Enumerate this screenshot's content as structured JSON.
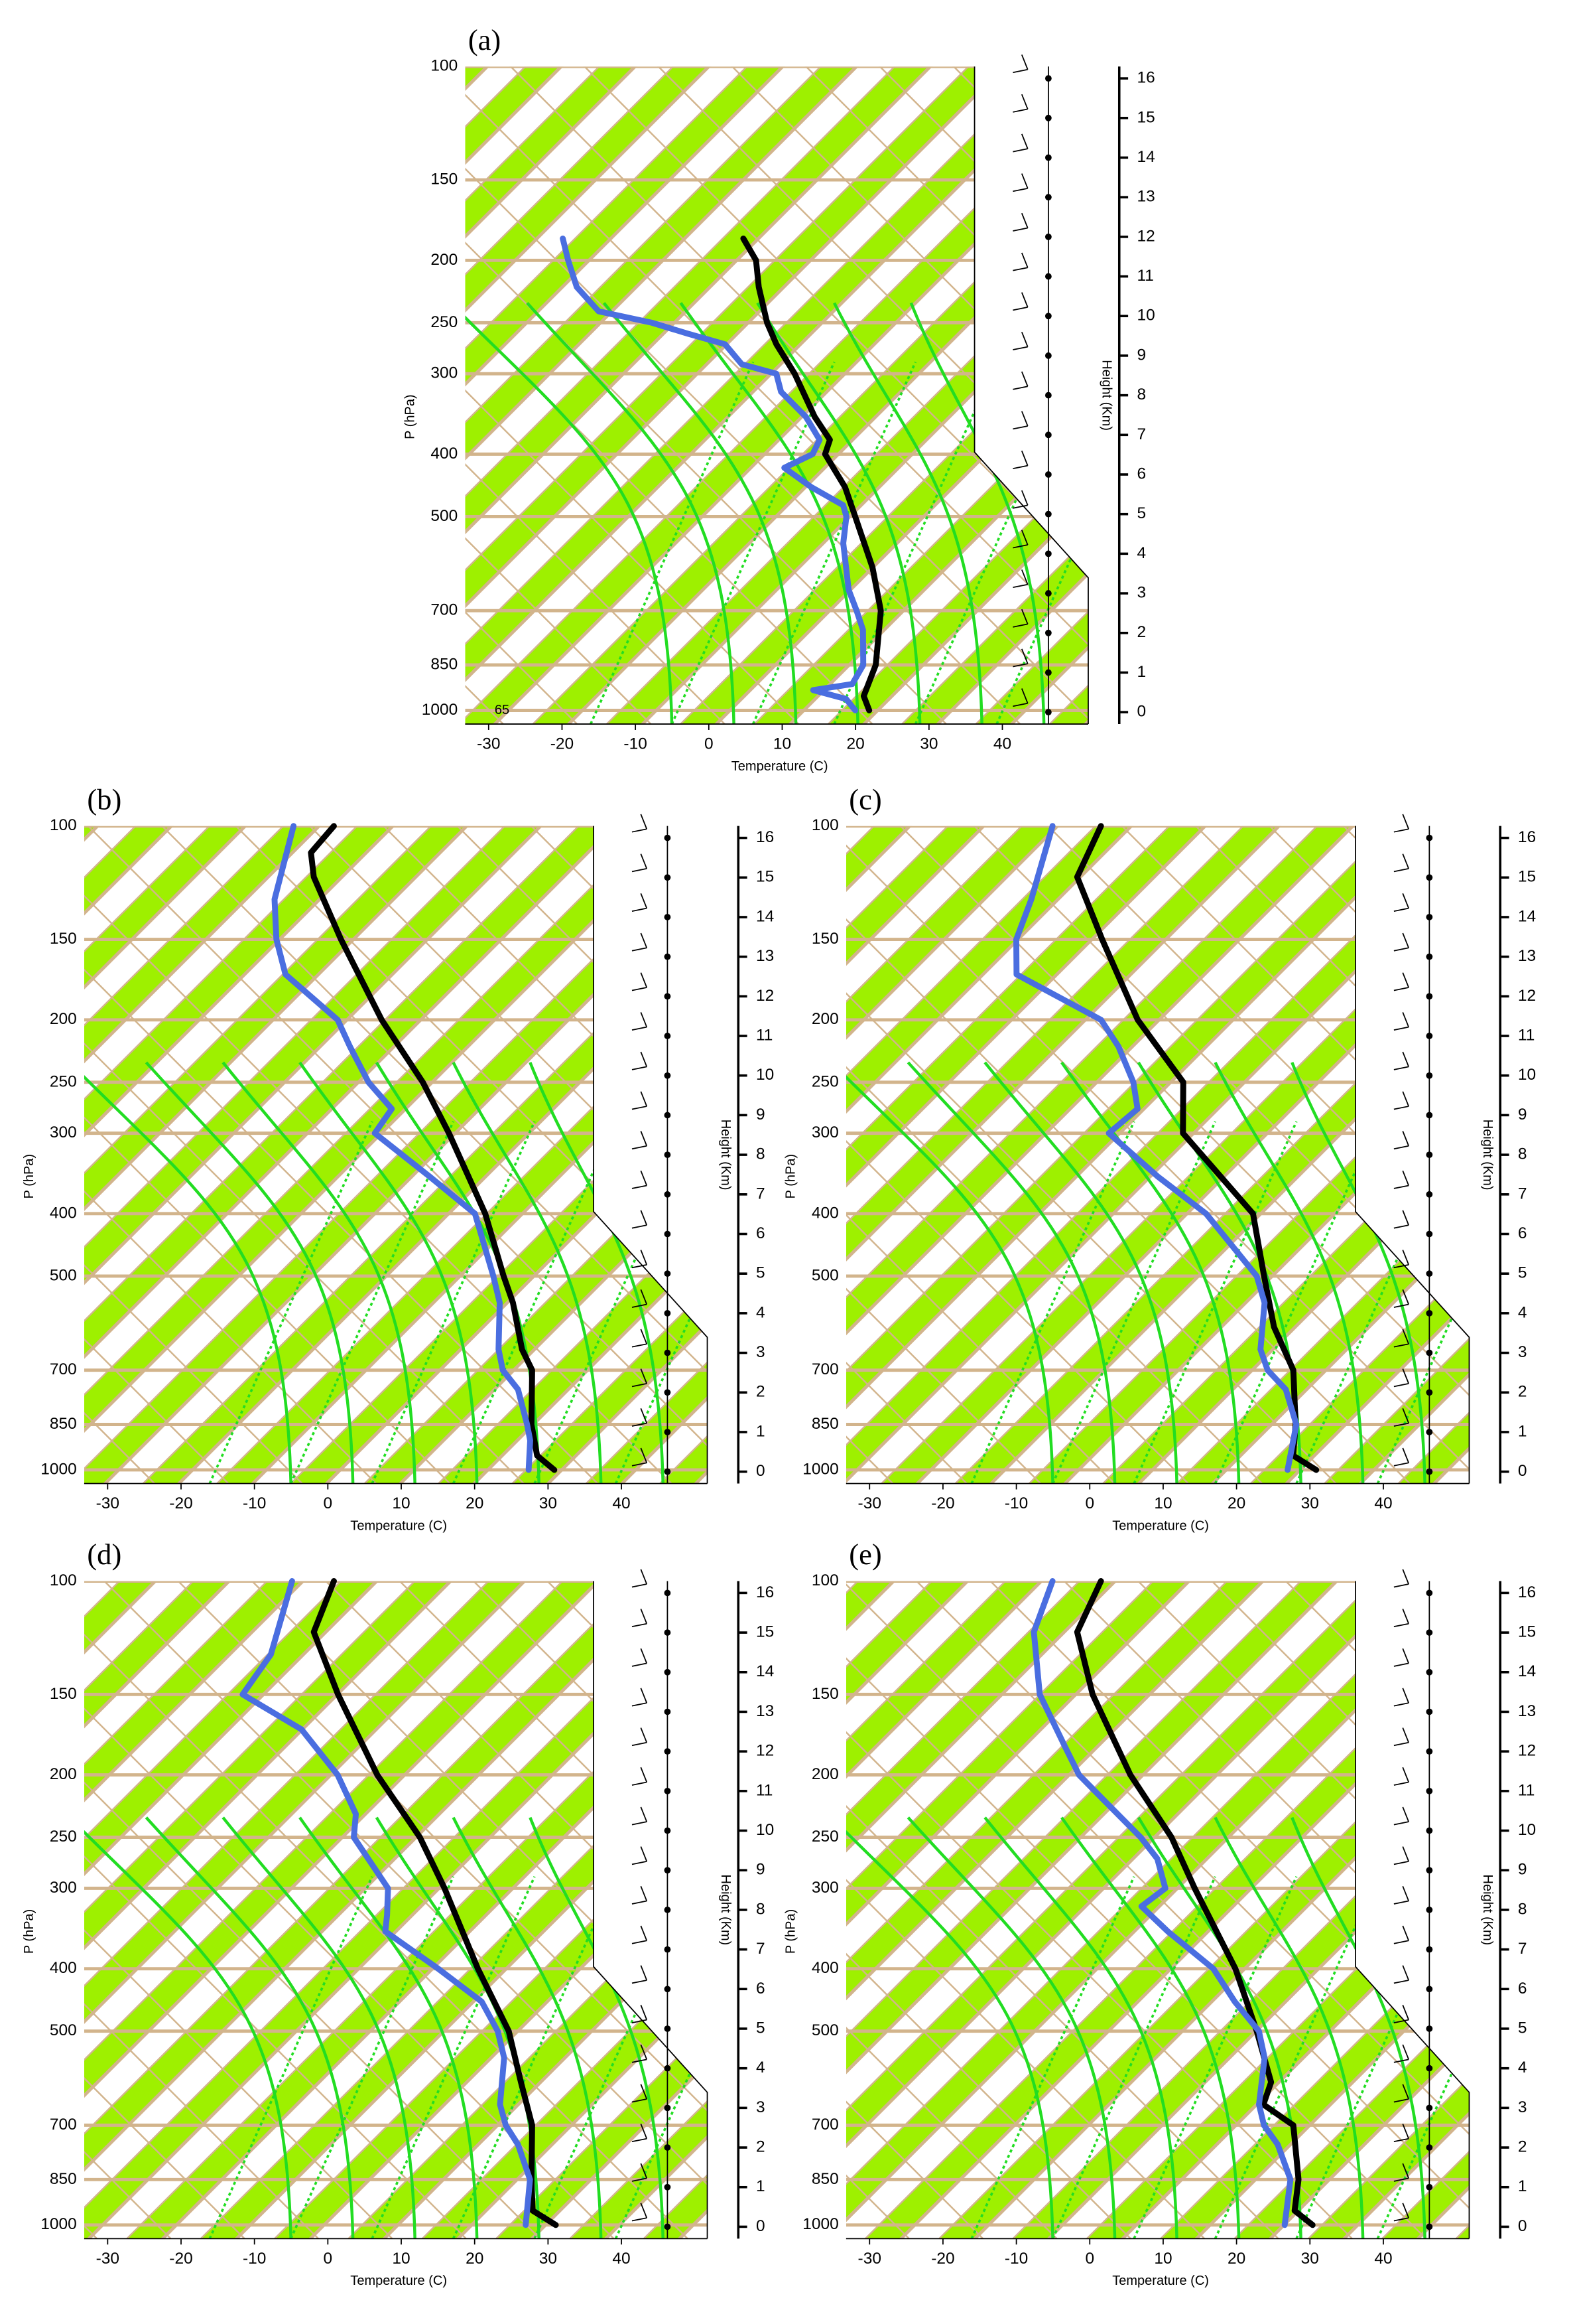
{
  "chart_data": [
    {
      "type": "skewt",
      "title": "(a)",
      "annotation": "65",
      "xlabel": "Temperature (C)",
      "ylabel": "P (hPa)",
      "y2label": "Height (Km)",
      "xlim": [
        -33.2,
        51.7
      ],
      "xticks": [
        -30,
        -20,
        -10,
        0,
        10,
        20,
        30,
        40
      ],
      "ylim": [
        1050,
        100
      ],
      "ylog": true,
      "yticks": [
        100,
        150,
        200,
        250,
        300,
        400,
        500,
        700,
        850,
        1000
      ],
      "y2lim": [
        -0.3,
        16.3
      ],
      "y2ticks": [
        0,
        1,
        2,
        3,
        4,
        5,
        6,
        7,
        8,
        9,
        10,
        11,
        12,
        13,
        14,
        15,
        16
      ],
      "grid": true,
      "series": [
        {
          "color": "#000000",
          "values": [
            1000,
            950,
            850,
            700,
            600,
            500,
            450,
            400,
            380,
            350,
            300,
            270,
            250,
            220,
            200,
            185
          ],
          "x": [
            20,
            17.3,
            14.7,
            8,
            1,
            -8.3,
            -13.7,
            -20.9,
            -22.2,
            -27.4,
            -36,
            -42.5,
            -46.7,
            -52.7,
            -56.7,
            -61.4
          ]
        },
        {
          "color": "#4a6ee0",
          "values": [
            1000,
            960,
            930,
            910,
            850,
            750,
            700,
            650,
            550,
            500,
            480,
            450,
            420,
            400,
            380,
            350,
            320,
            300,
            290,
            270,
            260,
            250,
            240,
            220,
            200,
            185
          ],
          "x": [
            18.1,
            15.3,
            9.6,
            14.1,
            13,
            8.2,
            4.7,
            0.8,
            -6.3,
            -9.5,
            -11.5,
            -18.3,
            -24.6,
            -22.6,
            -23.6,
            -28.6,
            -35.4,
            -38.5,
            -44.5,
            -49.5,
            -56,
            -62.4,
            -71.2,
            -77.5,
            -82.3,
            -86
          ]
        }
      ]
    },
    {
      "type": "skewt",
      "title": "(b)",
      "xlabel": "Temperature (C)",
      "ylabel": "P (hPa)",
      "y2label": "Height (Km)",
      "xlim": [
        -33.2,
        51.7
      ],
      "xticks": [
        -30,
        -20,
        -10,
        0,
        10,
        20,
        30,
        40
      ],
      "ylim": [
        1050,
        100
      ],
      "ylog": true,
      "yticks": [
        100,
        150,
        200,
        250,
        300,
        400,
        500,
        700,
        850,
        1000
      ],
      "y2lim": [
        -0.3,
        16.3
      ],
      "y2ticks": [
        0,
        1,
        2,
        3,
        4,
        5,
        6,
        7,
        8,
        9,
        10,
        11,
        12,
        13,
        14,
        15,
        16
      ],
      "grid": true,
      "series": [
        {
          "color": "#000000",
          "values": [
            1000,
            950,
            850,
            700,
            650,
            550,
            500,
            400,
            300,
            250,
            200,
            150,
            120,
            110,
            100
          ],
          "x": [
            29,
            24.7,
            19.7,
            12.4,
            8.2,
            0.6,
            -4.3,
            -15.3,
            -31.2,
            -41.7,
            -55.8,
            -72.3,
            -84.5,
            -88.2,
            -88.7
          ]
        },
        {
          "color": "#4a6ee0",
          "values": [
            1000,
            900,
            850,
            750,
            700,
            650,
            550,
            500,
            400,
            350,
            300,
            275,
            250,
            220,
            200,
            170,
            150,
            130,
            100
          ],
          "x": [
            25.5,
            21.7,
            19.1,
            13.1,
            8.4,
            5,
            -1.2,
            -5.7,
            -16.7,
            -28,
            -41.3,
            -42.3,
            -49.1,
            -56.5,
            -61.8,
            -75.1,
            -81.1,
            -86.8,
            -94.2
          ]
        }
      ]
    },
    {
      "type": "skewt",
      "title": "(c)",
      "xlabel": "Temperature (C)",
      "ylabel": "P (hPa)",
      "y2label": "Height (Km)",
      "xlim": [
        -33.2,
        51.7
      ],
      "xticks": [
        -30,
        -20,
        -10,
        0,
        10,
        20,
        30,
        40
      ],
      "ylim": [
        1050,
        100
      ],
      "ylog": true,
      "yticks": [
        100,
        150,
        200,
        250,
        300,
        400,
        500,
        700,
        850,
        1000
      ],
      "y2lim": [
        -0.3,
        16.3
      ],
      "y2ticks": [
        0,
        1,
        2,
        3,
        4,
        5,
        6,
        7,
        8,
        9,
        10,
        11,
        12,
        13,
        14,
        15,
        16
      ],
      "grid": true,
      "series": [
        {
          "color": "#000000",
          "values": [
            1000,
            950,
            850,
            700,
            600,
            500,
            400,
            300,
            250,
            200,
            150,
            120,
            100
          ],
          "x": [
            29,
            23.9,
            20,
            12.3,
            3.8,
            -4.5,
            -14.5,
            -35,
            -41.9,
            -56.6,
            -72.4,
            -84.3,
            -88
          ]
        },
        {
          "color": "#4a6ee0",
          "values": [
            1000,
            850,
            750,
            700,
            650,
            550,
            500,
            400,
            350,
            300,
            275,
            250,
            220,
            200,
            170,
            150,
            130,
            100
          ],
          "x": [
            25.1,
            20.1,
            13.9,
            8.8,
            5,
            -0.8,
            -5.5,
            -20.9,
            -32.6,
            -45.1,
            -44.5,
            -48.7,
            -55.6,
            -61.6,
            -79.3,
            -84.1,
            -87.5,
            -94.6
          ]
        }
      ]
    },
    {
      "type": "skewt",
      "title": "(d)",
      "xlabel": "Temperature (C)",
      "ylabel": "P (hPa)",
      "y2label": "Height (Km)",
      "xlim": [
        -33.2,
        51.7
      ],
      "xticks": [
        -30,
        -20,
        -10,
        0,
        10,
        20,
        30,
        40
      ],
      "ylim": [
        1050,
        100
      ],
      "ylog": true,
      "yticks": [
        100,
        150,
        200,
        250,
        300,
        400,
        500,
        700,
        850,
        1000
      ],
      "y2lim": [
        -0.3,
        16.3
      ],
      "y2ticks": [
        0,
        1,
        2,
        3,
        4,
        5,
        6,
        7,
        8,
        9,
        10,
        11,
        12,
        13,
        14,
        15,
        16
      ],
      "grid": true,
      "series": [
        {
          "color": "#000000",
          "values": [
            1000,
            950,
            850,
            700,
            600,
            500,
            400,
            300,
            250,
            200,
            150,
            120,
            100
          ],
          "x": [
            29.2,
            24.1,
            19.7,
            12.4,
            5,
            -3.6,
            -16.3,
            -31.8,
            -42.1,
            -56.4,
            -72.7,
            -84.5,
            -88.7
          ]
        },
        {
          "color": "#4a6ee0",
          "values": [
            1000,
            850,
            750,
            700,
            650,
            550,
            500,
            450,
            400,
            350,
            330,
            300,
            250,
            230,
            200,
            170,
            150,
            130,
            100
          ],
          "x": [
            25.1,
            19.5,
            13.1,
            8.8,
            5.2,
            -0.6,
            -5.1,
            -11.3,
            -21.7,
            -34,
            -36,
            -39.5,
            -51.1,
            -54,
            -61.8,
            -72.9,
            -85.7,
            -87.3,
            -94.4
          ]
        }
      ]
    },
    {
      "type": "skewt",
      "title": "(e)",
      "xlabel": "Temperature (C)",
      "ylabel": "P (hPa)",
      "y2label": "Height (Km)",
      "xlim": [
        -33.2,
        51.7
      ],
      "xticks": [
        -30,
        -20,
        -10,
        0,
        10,
        20,
        30,
        40
      ],
      "ylim": [
        1050,
        100
      ],
      "ylog": true,
      "yticks": [
        100,
        150,
        200,
        250,
        300,
        400,
        500,
        700,
        850,
        1000
      ],
      "y2lim": [
        -0.3,
        16.3
      ],
      "y2ticks": [
        0,
        1,
        2,
        3,
        4,
        5,
        6,
        7,
        8,
        9,
        10,
        11,
        12,
        13,
        14,
        15,
        16
      ],
      "grid": true,
      "series": [
        {
          "color": "#000000",
          "values": [
            1000,
            950,
            850,
            700,
            650,
            600,
            500,
            400,
            300,
            250,
            200,
            150,
            120,
            100
          ],
          "x": [
            28.5,
            24.1,
            20.4,
            12.3,
            5.4,
            3.4,
            -5.5,
            -16.9,
            -33.4,
            -43.5,
            -57.6,
            -73.7,
            -84.3,
            -88
          ]
        },
        {
          "color": "#4a6ee0",
          "values": [
            1000,
            850,
            750,
            700,
            650,
            550,
            500,
            450,
            400,
            350,
            320,
            300,
            270,
            250,
            220,
            200,
            180,
            150,
            120,
            100
          ],
          "x": [
            24.7,
            19.3,
            12.8,
            8.3,
            4.8,
            -0.8,
            -5.2,
            -12.5,
            -19.9,
            -31.2,
            -38.2,
            -37.4,
            -42.5,
            -47.7,
            -57.4,
            -64.6,
            -70.6,
            -80.9,
            -90.2,
            -94.6
          ]
        }
      ]
    }
  ]
}
